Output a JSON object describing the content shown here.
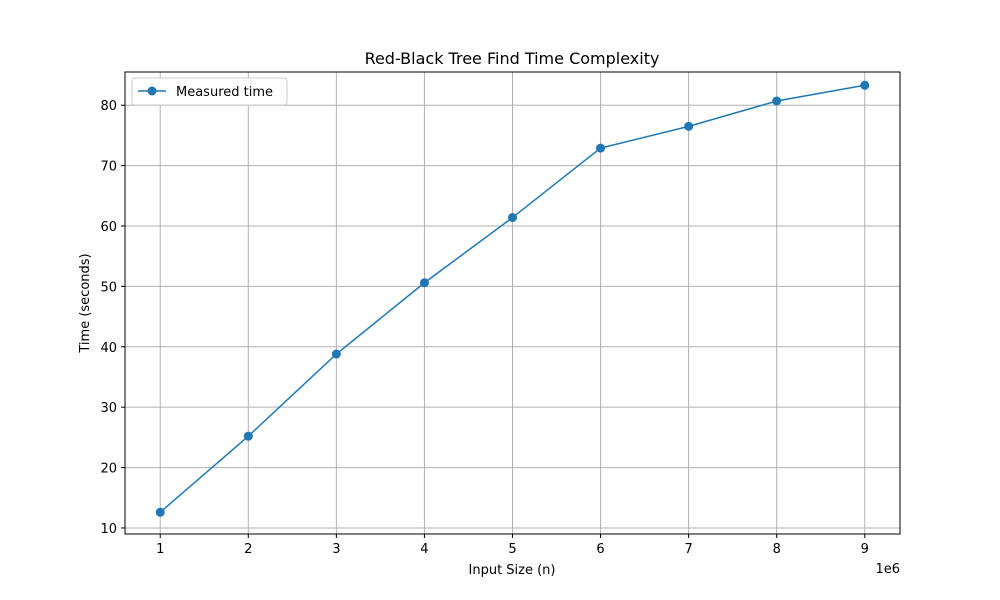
{
  "chart_data": {
    "type": "line",
    "title": "Red-Black Tree Find Time Complexity",
    "xlabel": "Input Size (n)",
    "ylabel": "Time (seconds)",
    "x_offset_label": "1e6",
    "xlim": [
      0.6,
      9.4
    ],
    "ylim": [
      9,
      85.5
    ],
    "x_ticks": [
      1,
      2,
      3,
      4,
      5,
      6,
      7,
      8,
      9
    ],
    "y_ticks": [
      10,
      20,
      30,
      40,
      50,
      60,
      70,
      80
    ],
    "grid": true,
    "legend_position": "upper-left",
    "series": [
      {
        "name": "Measured time",
        "color": "#1f77b4",
        "marker": "circle",
        "x": [
          1,
          2,
          3,
          4,
          5,
          6,
          7,
          8,
          9
        ],
        "y": [
          12.6,
          25.2,
          38.8,
          50.6,
          61.4,
          72.9,
          76.5,
          80.7,
          83.3
        ]
      }
    ]
  }
}
